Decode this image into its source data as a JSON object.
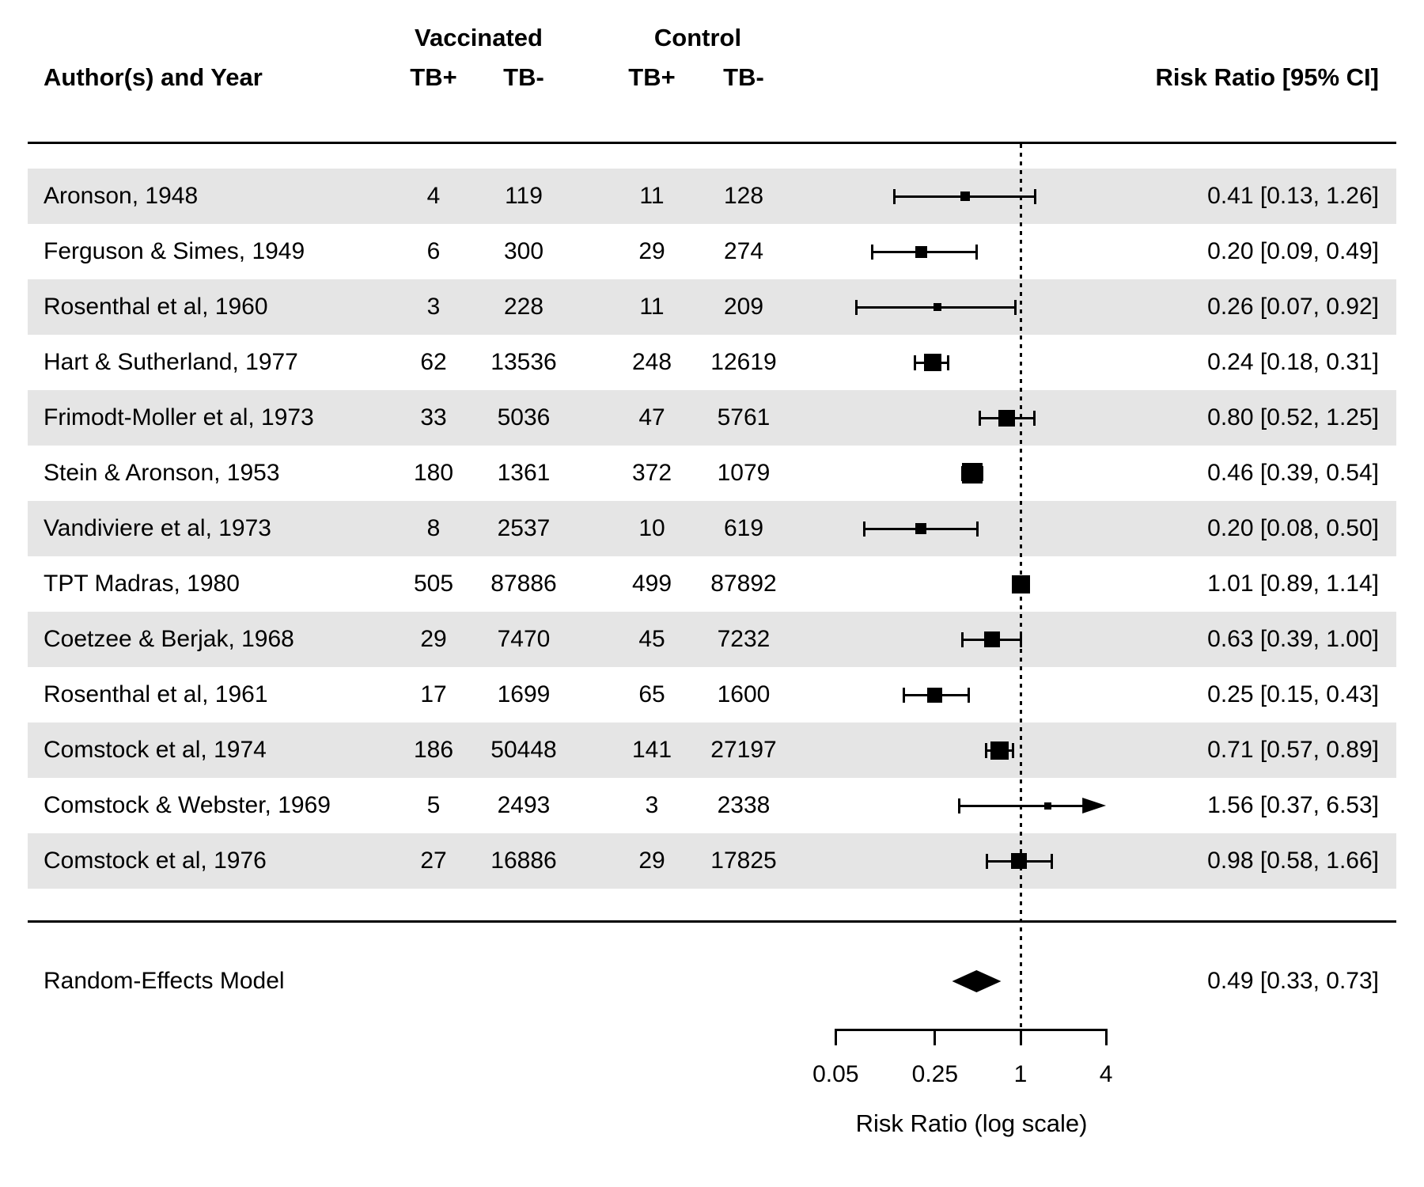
{
  "header": {
    "author_col": "Author(s) and Year",
    "group1": "Vaccinated",
    "group2": "Control",
    "tb_pos": "TB+",
    "tb_neg": "TB-",
    "rr_col": "Risk Ratio [95% CI]"
  },
  "summary": {
    "label": "Random-Effects Model",
    "estimate_text": "0.49 [0.33, 0.73]",
    "rr": 0.49,
    "ci_low": 0.33,
    "ci_high": 0.73
  },
  "colors": {
    "band": "#e5e5e5",
    "ink": "#000000",
    "background": "#ffffff"
  },
  "chart_data": {
    "type": "forest",
    "title": "",
    "xlabel": "Risk Ratio (log scale)",
    "x_scale": "log",
    "x_ticks": [
      0.05,
      0.25,
      1,
      4
    ],
    "x_tick_labels": [
      "0.05",
      "0.25",
      "1",
      "4"
    ],
    "xlim": [
      0.05,
      4
    ],
    "reference_line": 1,
    "columns": [
      "Author(s) and Year",
      "Vaccinated TB+",
      "Vaccinated TB-",
      "Control TB+",
      "Control TB-",
      "Risk Ratio [95% CI]"
    ],
    "studies": [
      {
        "author": "Aronson, 1948",
        "v_pos": "4",
        "v_neg": "119",
        "c_pos": "11",
        "c_neg": "128",
        "rr": 0.41,
        "ci_low": 0.13,
        "ci_high": 1.26,
        "label": "0.41 [0.13, 1.26]",
        "size": 12
      },
      {
        "author": "Ferguson & Simes, 1949",
        "v_pos": "6",
        "v_neg": "300",
        "c_pos": "29",
        "c_neg": "274",
        "rr": 0.2,
        "ci_low": 0.09,
        "ci_high": 0.49,
        "label": "0.20 [0.09, 0.49]",
        "size": 15
      },
      {
        "author": "Rosenthal et al, 1960",
        "v_pos": "3",
        "v_neg": "228",
        "c_pos": "11",
        "c_neg": "209",
        "rr": 0.26,
        "ci_low": 0.07,
        "ci_high": 0.92,
        "label": "0.26 [0.07, 0.92]",
        "size": 10
      },
      {
        "author": "Hart & Sutherland, 1977",
        "v_pos": "62",
        "v_neg": "13536",
        "c_pos": "248",
        "c_neg": "12619",
        "rr": 0.24,
        "ci_low": 0.18,
        "ci_high": 0.31,
        "label": "0.24 [0.18, 0.31]",
        "size": 22
      },
      {
        "author": "Frimodt-Moller et al, 1973",
        "v_pos": "33",
        "v_neg": "5036",
        "c_pos": "47",
        "c_neg": "5761",
        "rr": 0.8,
        "ci_low": 0.52,
        "ci_high": 1.25,
        "label": "0.80 [0.52, 1.25]",
        "size": 21
      },
      {
        "author": "Stein & Aronson, 1953",
        "v_pos": "180",
        "v_neg": "1361",
        "c_pos": "372",
        "c_neg": "1079",
        "rr": 0.46,
        "ci_low": 0.39,
        "ci_high": 0.54,
        "label": "0.46 [0.39, 0.54]",
        "size": 26
      },
      {
        "author": "Vandiviere et al, 1973",
        "v_pos": "8",
        "v_neg": "2537",
        "c_pos": "10",
        "c_neg": "619",
        "rr": 0.2,
        "ci_low": 0.08,
        "ci_high": 0.5,
        "label": "0.20 [0.08, 0.50]",
        "size": 14
      },
      {
        "author": "TPT Madras, 1980",
        "v_pos": "505",
        "v_neg": "87886",
        "c_pos": "499",
        "c_neg": "87892",
        "rr": 1.01,
        "ci_low": 0.89,
        "ci_high": 1.14,
        "label": "1.01 [0.89, 1.14]",
        "size": 23
      },
      {
        "author": "Coetzee & Berjak, 1968",
        "v_pos": "29",
        "v_neg": "7470",
        "c_pos": "45",
        "c_neg": "7232",
        "rr": 0.63,
        "ci_low": 0.39,
        "ci_high": 1.0,
        "label": "0.63 [0.39, 1.00]",
        "size": 20
      },
      {
        "author": "Rosenthal et al, 1961",
        "v_pos": "17",
        "v_neg": "1699",
        "c_pos": "65",
        "c_neg": "1600",
        "rr": 0.25,
        "ci_low": 0.15,
        "ci_high": 0.43,
        "label": "0.25 [0.15, 0.43]",
        "size": 19
      },
      {
        "author": "Comstock et al, 1974",
        "v_pos": "186",
        "v_neg": "50448",
        "c_pos": "141",
        "c_neg": "27197",
        "rr": 0.71,
        "ci_low": 0.57,
        "ci_high": 0.89,
        "label": "0.71 [0.57, 0.89]",
        "size": 23
      },
      {
        "author": "Comstock & Webster, 1969",
        "v_pos": "5",
        "v_neg": "2493",
        "c_pos": "3",
        "c_neg": "2338",
        "rr": 1.56,
        "ci_low": 0.37,
        "ci_high": 6.53,
        "label": "1.56 [0.37, 6.53]",
        "size": 9
      },
      {
        "author": "Comstock et al, 1976",
        "v_pos": "27",
        "v_neg": "16886",
        "c_pos": "29",
        "c_neg": "17825",
        "rr": 0.98,
        "ci_low": 0.58,
        "ci_high": 1.66,
        "label": "0.98 [0.58, 1.66]",
        "size": 20
      }
    ],
    "summary_row": {
      "label": "Random-Effects Model",
      "rr": 0.49,
      "ci_low": 0.33,
      "ci_high": 0.73,
      "estimate_text": "0.49 [0.33, 0.73]"
    },
    "legend": null,
    "grid": false
  }
}
